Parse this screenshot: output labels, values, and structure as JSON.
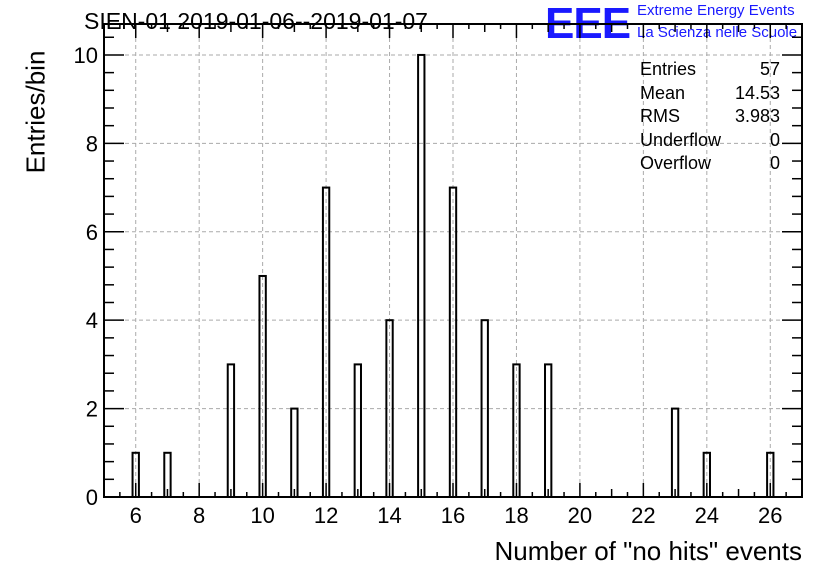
{
  "title": "SIEN-01 2019-01-06--2019-01-07",
  "logo": {
    "mark": "EEE",
    "line1": "Extreme Energy Events",
    "line2": "La Scienza nelle Scuole"
  },
  "stats": [
    {
      "label": "Entries",
      "value": "57"
    },
    {
      "label": "Mean",
      "value": "14.53"
    },
    {
      "label": "RMS",
      "value": "3.983"
    },
    {
      "label": "Underflow",
      "value": "0"
    },
    {
      "label": "Overflow",
      "value": "0"
    }
  ],
  "chart_data": {
    "type": "histogram",
    "title": "SIEN-01 2019-01-06--2019-01-07",
    "xlabel": "Number of \"no hits\" events",
    "ylabel": "Entries/bin",
    "xlim": [
      5,
      27
    ],
    "ylim": [
      0,
      10.7
    ],
    "xticks": [
      6,
      8,
      10,
      12,
      14,
      16,
      18,
      20,
      22,
      24,
      26
    ],
    "yticks": [
      0,
      2,
      4,
      6,
      8,
      10
    ],
    "bin_width": 0.2,
    "grid": true,
    "bins": [
      {
        "x": 6,
        "count": 1
      },
      {
        "x": 7,
        "count": 1
      },
      {
        "x": 9,
        "count": 3
      },
      {
        "x": 10,
        "count": 5
      },
      {
        "x": 11,
        "count": 2
      },
      {
        "x": 12,
        "count": 7
      },
      {
        "x": 13,
        "count": 3
      },
      {
        "x": 14,
        "count": 4
      },
      {
        "x": 15,
        "count": 10
      },
      {
        "x": 16,
        "count": 7
      },
      {
        "x": 17,
        "count": 4
      },
      {
        "x": 18,
        "count": 3
      },
      {
        "x": 19,
        "count": 3
      },
      {
        "x": 23,
        "count": 2
      },
      {
        "x": 24,
        "count": 1
      },
      {
        "x": 26,
        "count": 1
      }
    ]
  }
}
